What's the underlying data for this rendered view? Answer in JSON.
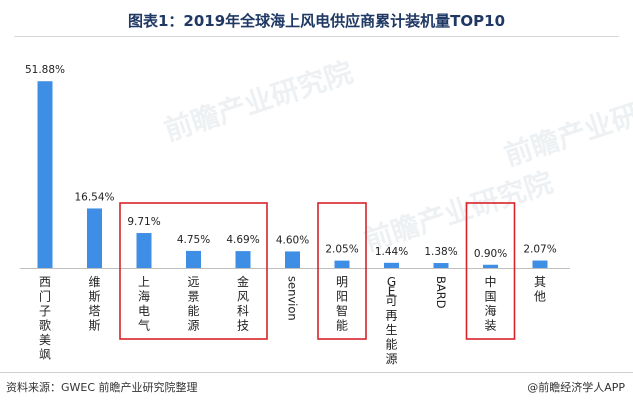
{
  "title": "图表1：2019年全球海上风电供应商累计装机量TOP10",
  "footer": {
    "source": "资料来源：GWEC 前瞻产业研究院整理",
    "brand": "@前瞻经济学人APP"
  },
  "watermark": "前瞻产业研究院",
  "colors": {
    "bar": "#3e8ee6",
    "highlight_box": "#d9232a",
    "title": "#1f3864"
  },
  "chart_data": {
    "type": "bar",
    "title": "图表1：2019年全球海上风电供应商累计装机量TOP10",
    "xlabel": "",
    "ylabel": "",
    "ylim": [
      0,
      55
    ],
    "grid": false,
    "categories": [
      "西门子歌美飒",
      "维斯塔斯",
      "上海电气",
      "远景能源",
      "金风科技",
      "senvion",
      "明阳智能",
      "GE可再生能源",
      "BARD",
      "中国海装",
      "其他"
    ],
    "values": [
      51.88,
      16.54,
      9.71,
      4.75,
      4.69,
      4.6,
      2.05,
      1.44,
      1.38,
      0.9,
      2.07
    ],
    "value_labels": [
      "51.88%",
      "16.54%",
      "9.71%",
      "4.75%",
      "4.69%",
      "4.60%",
      "2.05%",
      "1.44%",
      "1.38%",
      "0.90%",
      "2.07%"
    ],
    "label_orientation": [
      "vertical",
      "vertical",
      "vertical",
      "vertical",
      "vertical",
      "rotated",
      "vertical",
      "vertical",
      "rotated",
      "vertical",
      "vertical"
    ],
    "highlight_groups": [
      [
        2,
        3,
        4
      ],
      [
        6
      ],
      [
        9
      ]
    ]
  }
}
